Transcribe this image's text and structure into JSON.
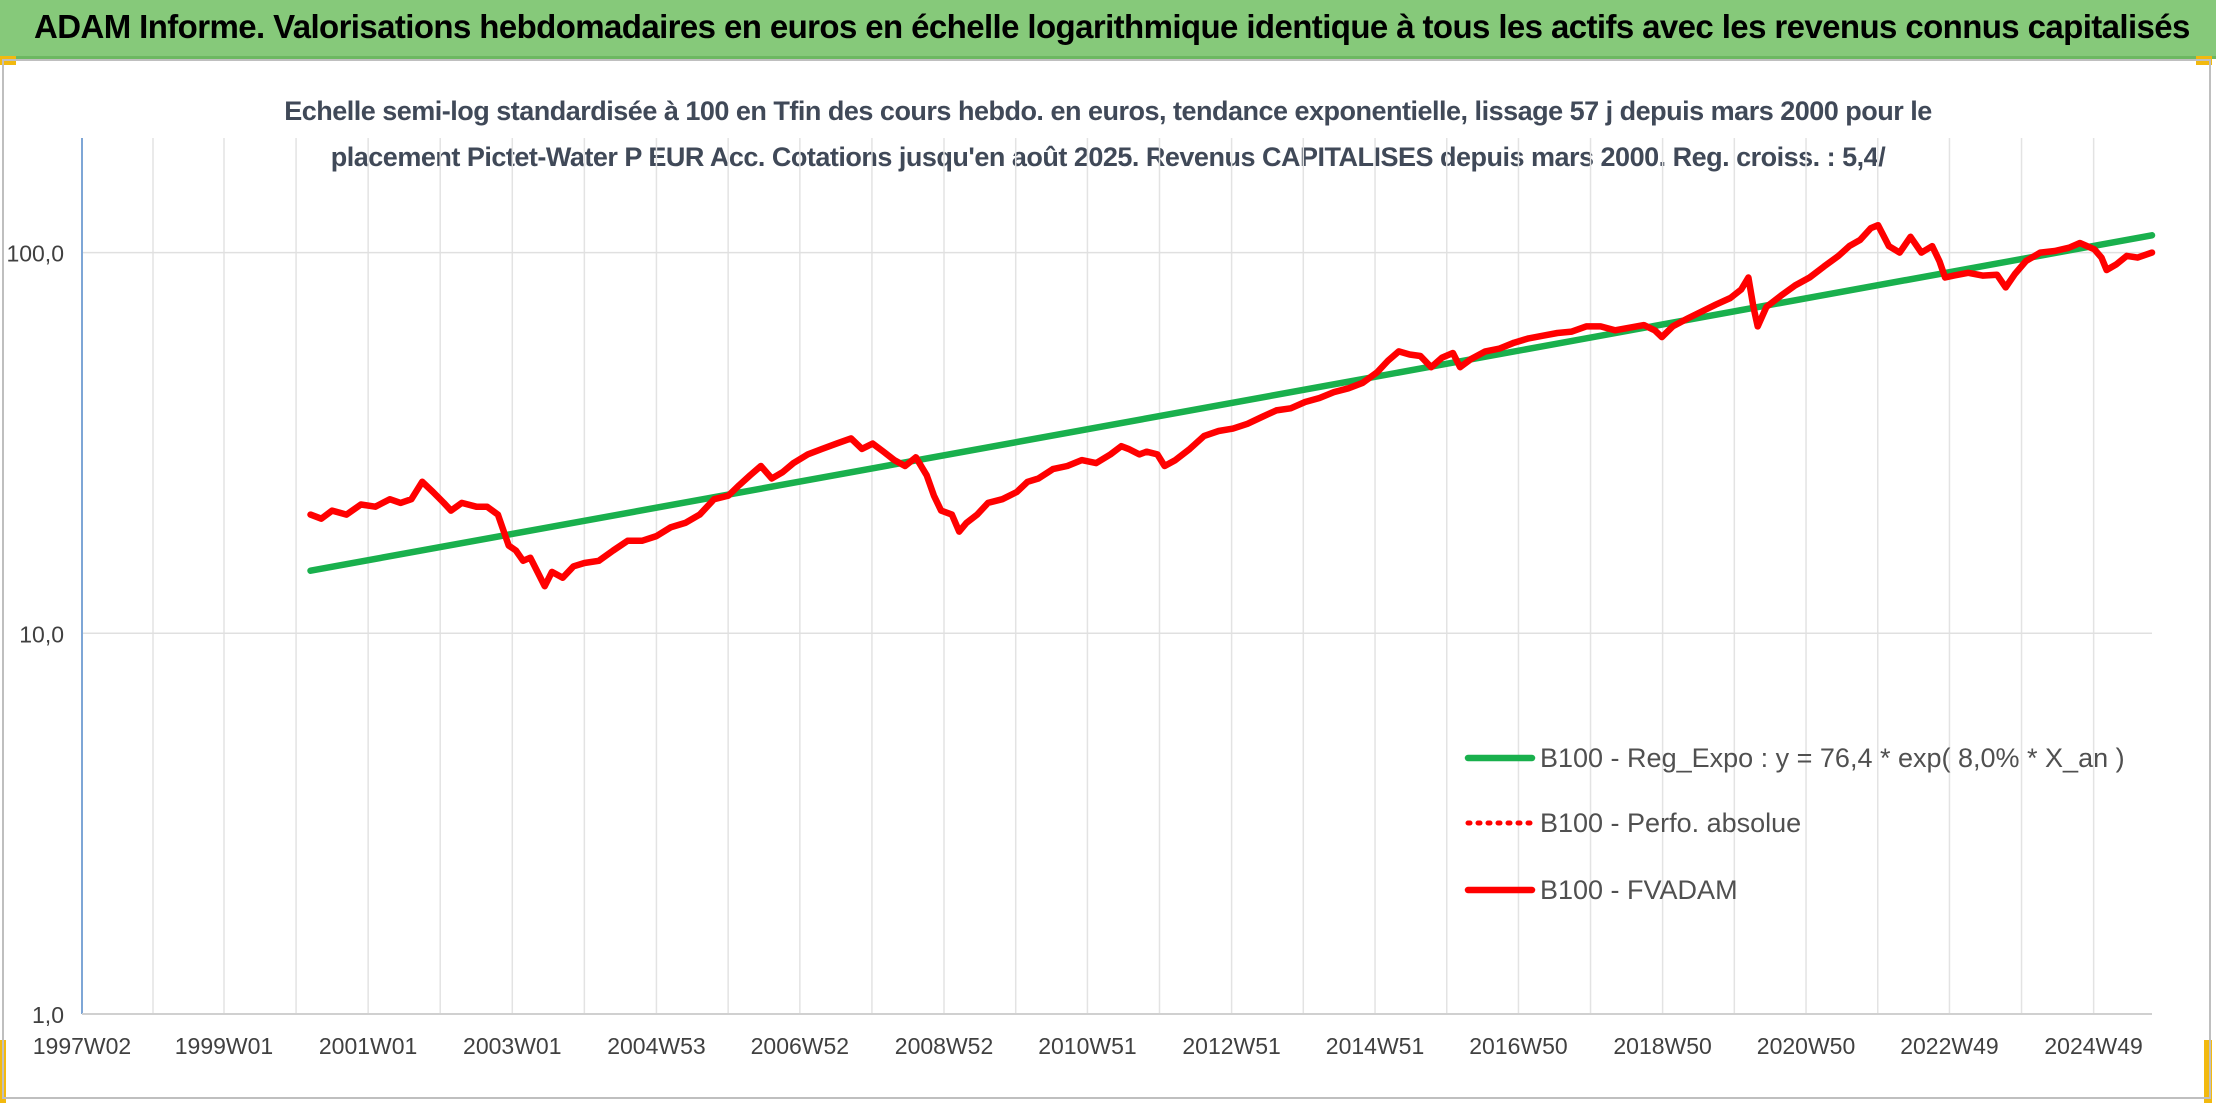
{
  "header": {
    "title": "ADAM Informe. Valorisations hebdomadaires en euros en échelle logarithmique identique à tous les actifs avec les revenus connus capitalisés"
  },
  "colors": {
    "header_bg": "#86c97a",
    "accent_corner": "#f2b90f",
    "regression_line": "#19b04d",
    "fvadam_line": "#ff0000",
    "perf_line": "#ff0000"
  },
  "chart_data": {
    "type": "line",
    "title_lines": [
      "Echelle semi-log standardisée à 100 en Tfin des cours hebdo. en euros, tendance exponentielle, lissage 57 j depuis mars 2000 pour le",
      "placement Pictet-Water P EUR Acc. Cotations jusqu'en août 2025. Revenus CAPITALISES depuis mars 2000. Reg. croiss. : 5,4/"
    ],
    "y_scale": "log",
    "ylim": [
      1,
      200
    ],
    "y_ticks": [
      {
        "value": 1,
        "label": "1,0"
      },
      {
        "value": 10,
        "label": "10,0"
      },
      {
        "value": 100,
        "label": "100,0"
      }
    ],
    "x_range": [
      1997.03,
      2025.75
    ],
    "x_ticks": [
      {
        "x": 1997.03,
        "label": "1997W02"
      },
      {
        "x": 1999.0,
        "label": "1999W01"
      },
      {
        "x": 2001.0,
        "label": "2001W01"
      },
      {
        "x": 2003.0,
        "label": "2003W01"
      },
      {
        "x": 2005.0,
        "label": "2004W53"
      },
      {
        "x": 2006.99,
        "label": "2006W52"
      },
      {
        "x": 2008.99,
        "label": "2008W52"
      },
      {
        "x": 2010.98,
        "label": "2010W51"
      },
      {
        "x": 2012.98,
        "label": "2012W51"
      },
      {
        "x": 2014.97,
        "label": "2014W51"
      },
      {
        "x": 2016.96,
        "label": "2016W50"
      },
      {
        "x": 2018.96,
        "label": "2018W50"
      },
      {
        "x": 2020.95,
        "label": "2020W50"
      },
      {
        "x": 2022.94,
        "label": "2022W49"
      },
      {
        "x": 2024.94,
        "label": "2024W49"
      }
    ],
    "grid": true,
    "legend_position": "bottom-right",
    "series": [
      {
        "name": "B100 - Reg_Expo : y = 76,4 * exp( 8,0% *  X_an )",
        "color": "#19b04d",
        "style": "solid",
        "points": [
          [
            2000.2,
            14.6
          ],
          [
            2025.75,
            111.0
          ]
        ]
      },
      {
        "name": "B100 - Perfo. absolue",
        "color": "#ff0000",
        "style": "dotted",
        "points": []
      },
      {
        "name": "B100 - FVADAM",
        "color": "#ff0000",
        "style": "solid",
        "points": [
          [
            2000.2,
            20.5
          ],
          [
            2000.35,
            20.0
          ],
          [
            2000.5,
            21.0
          ],
          [
            2000.7,
            20.5
          ],
          [
            2000.9,
            21.8
          ],
          [
            2001.1,
            21.5
          ],
          [
            2001.3,
            22.5
          ],
          [
            2001.45,
            22.0
          ],
          [
            2001.6,
            22.5
          ],
          [
            2001.75,
            25.0
          ],
          [
            2001.9,
            23.5
          ],
          [
            2002.05,
            22.0
          ],
          [
            2002.15,
            21.0
          ],
          [
            2002.3,
            22.0
          ],
          [
            2002.5,
            21.5
          ],
          [
            2002.65,
            21.5
          ],
          [
            2002.8,
            20.5
          ],
          [
            2002.95,
            17.0
          ],
          [
            2003.05,
            16.5
          ],
          [
            2003.15,
            15.5
          ],
          [
            2003.25,
            15.8
          ],
          [
            2003.35,
            14.5
          ],
          [
            2003.45,
            13.3
          ],
          [
            2003.55,
            14.5
          ],
          [
            2003.7,
            14.0
          ],
          [
            2003.85,
            15.0
          ],
          [
            2004.0,
            15.3
          ],
          [
            2004.2,
            15.5
          ],
          [
            2004.4,
            16.5
          ],
          [
            2004.6,
            17.5
          ],
          [
            2004.8,
            17.5
          ],
          [
            2005.0,
            18.0
          ],
          [
            2005.2,
            19.0
          ],
          [
            2005.4,
            19.5
          ],
          [
            2005.6,
            20.5
          ],
          [
            2005.8,
            22.5
          ],
          [
            2006.0,
            23.0
          ],
          [
            2006.15,
            24.5
          ],
          [
            2006.3,
            26.0
          ],
          [
            2006.45,
            27.5
          ],
          [
            2006.6,
            25.5
          ],
          [
            2006.75,
            26.5
          ],
          [
            2006.9,
            28.0
          ],
          [
            2007.1,
            29.5
          ],
          [
            2007.3,
            30.5
          ],
          [
            2007.5,
            31.5
          ],
          [
            2007.7,
            32.5
          ],
          [
            2007.85,
            30.5
          ],
          [
            2008.0,
            31.5
          ],
          [
            2008.15,
            30.0
          ],
          [
            2008.3,
            28.5
          ],
          [
            2008.45,
            27.5
          ],
          [
            2008.6,
            29.0
          ],
          [
            2008.75,
            26.0
          ],
          [
            2008.85,
            23.0
          ],
          [
            2008.95,
            21.0
          ],
          [
            2009.1,
            20.5
          ],
          [
            2009.2,
            18.5
          ],
          [
            2009.3,
            19.5
          ],
          [
            2009.45,
            20.5
          ],
          [
            2009.6,
            22.0
          ],
          [
            2009.8,
            22.5
          ],
          [
            2010.0,
            23.5
          ],
          [
            2010.15,
            25.0
          ],
          [
            2010.3,
            25.5
          ],
          [
            2010.5,
            27.0
          ],
          [
            2010.7,
            27.5
          ],
          [
            2010.9,
            28.5
          ],
          [
            2011.1,
            28.0
          ],
          [
            2011.3,
            29.5
          ],
          [
            2011.45,
            31.0
          ],
          [
            2011.55,
            30.5
          ],
          [
            2011.7,
            29.5
          ],
          [
            2011.8,
            30.0
          ],
          [
            2011.95,
            29.5
          ],
          [
            2012.05,
            27.5
          ],
          [
            2012.2,
            28.5
          ],
          [
            2012.4,
            30.5
          ],
          [
            2012.6,
            33.0
          ],
          [
            2012.8,
            34.0
          ],
          [
            2013.0,
            34.5
          ],
          [
            2013.2,
            35.5
          ],
          [
            2013.4,
            37.0
          ],
          [
            2013.6,
            38.5
          ],
          [
            2013.8,
            39.0
          ],
          [
            2014.0,
            40.5
          ],
          [
            2014.2,
            41.5
          ],
          [
            2014.4,
            43.0
          ],
          [
            2014.6,
            44.0
          ],
          [
            2014.8,
            45.5
          ],
          [
            2015.0,
            48.5
          ],
          [
            2015.15,
            52.0
          ],
          [
            2015.3,
            55.0
          ],
          [
            2015.45,
            54.0
          ],
          [
            2015.6,
            53.5
          ],
          [
            2015.75,
            50.0
          ],
          [
            2015.9,
            53.0
          ],
          [
            2016.05,
            54.5
          ],
          [
            2016.15,
            50.0
          ],
          [
            2016.3,
            52.5
          ],
          [
            2016.5,
            55.0
          ],
          [
            2016.7,
            56.0
          ],
          [
            2016.9,
            58.0
          ],
          [
            2017.1,
            59.5
          ],
          [
            2017.3,
            60.5
          ],
          [
            2017.5,
            61.5
          ],
          [
            2017.7,
            62.0
          ],
          [
            2017.9,
            64.0
          ],
          [
            2018.1,
            64.0
          ],
          [
            2018.3,
            62.5
          ],
          [
            2018.5,
            63.5
          ],
          [
            2018.7,
            64.5
          ],
          [
            2018.85,
            62.5
          ],
          [
            2018.95,
            60.0
          ],
          [
            2019.1,
            64.0
          ],
          [
            2019.3,
            67.0
          ],
          [
            2019.5,
            70.0
          ],
          [
            2019.7,
            73.0
          ],
          [
            2019.9,
            76.0
          ],
          [
            2020.05,
            80.0
          ],
          [
            2020.15,
            86.0
          ],
          [
            2020.22,
            72.0
          ],
          [
            2020.28,
            64.0
          ],
          [
            2020.4,
            72.0
          ],
          [
            2020.6,
            77.0
          ],
          [
            2020.8,
            82.0
          ],
          [
            2021.0,
            86.0
          ],
          [
            2021.2,
            92.0
          ],
          [
            2021.4,
            98.0
          ],
          [
            2021.55,
            104.0
          ],
          [
            2021.7,
            108.0
          ],
          [
            2021.85,
            116.0
          ],
          [
            2021.95,
            118.0
          ],
          [
            2022.1,
            104.0
          ],
          [
            2022.25,
            100.0
          ],
          [
            2022.4,
            110.0
          ],
          [
            2022.55,
            100.0
          ],
          [
            2022.7,
            104.0
          ],
          [
            2022.8,
            95.0
          ],
          [
            2022.88,
            86.0
          ],
          [
            2023.0,
            87.0
          ],
          [
            2023.2,
            88.5
          ],
          [
            2023.4,
            87.0
          ],
          [
            2023.6,
            87.5
          ],
          [
            2023.72,
            81.0
          ],
          [
            2023.85,
            88.0
          ],
          [
            2024.0,
            95.0
          ],
          [
            2024.2,
            100.0
          ],
          [
            2024.4,
            101.0
          ],
          [
            2024.6,
            103.0
          ],
          [
            2024.75,
            106.0
          ],
          [
            2024.85,
            104.0
          ],
          [
            2024.95,
            102.0
          ],
          [
            2025.05,
            97.0
          ],
          [
            2025.12,
            90.0
          ],
          [
            2025.25,
            93.0
          ],
          [
            2025.4,
            98.0
          ],
          [
            2025.55,
            97.0
          ],
          [
            2025.75,
            100.0
          ]
        ]
      }
    ]
  }
}
